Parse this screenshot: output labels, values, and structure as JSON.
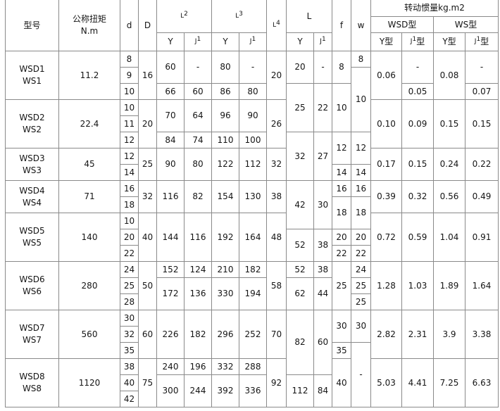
{
  "header": {
    "model": "型号",
    "torque": [
      "公称扭矩",
      "N.m"
    ],
    "d": "d",
    "D": "D",
    "L2": {
      "base": "L",
      "sup": "2"
    },
    "L3": {
      "base": "L",
      "sup": "3"
    },
    "L4": {
      "base": "L",
      "sup": "4"
    },
    "L": "L",
    "f": "f",
    "w": "w",
    "Y": "Y",
    "J1": {
      "base": "J",
      "sup": "1"
    },
    "inertia": "转动惯量kg.m2",
    "wsd": "WSD型",
    "ws": "WS型",
    "Y_type": "Y型",
    "J1_type": {
      "base": "J",
      "sup": "1",
      "suffix": "型"
    }
  },
  "body": {
    "groups": [
      {
        "model": [
          "WSD1",
          "WS1"
        ],
        "torque": "11.2",
        "d": [
          "8",
          "9",
          "10"
        ],
        "D": "16",
        "L2_Y": [
          "60",
          "66"
        ],
        "L2_J1": [
          "-",
          "60"
        ],
        "L3_Y": [
          "80",
          "86"
        ],
        "L3_J1": [
          "-",
          "80"
        ],
        "L4": "20",
        "wsd_Y": [
          "0.06"
        ],
        "wsd_J1": [
          "-",
          "0.05"
        ],
        "ws_Y": [
          "0.08"
        ],
        "ws_J1": [
          "-",
          "0.07"
        ]
      },
      {
        "model": [
          "WSD2",
          "WS2"
        ],
        "torque": "22.4",
        "d": [
          "10",
          "11",
          "12"
        ],
        "D": "20",
        "L2_Y": [
          "70",
          "84"
        ],
        "L2_J1": [
          "64",
          "74"
        ],
        "L3_Y": [
          "96",
          "110"
        ],
        "L3_J1": [
          "90",
          "100"
        ],
        "L4": "26",
        "wsd_Y": [
          "0.10"
        ],
        "wsd_J1": [
          "0.09"
        ],
        "ws_Y": [
          "0.15"
        ],
        "ws_J1": [
          "0.15"
        ]
      },
      {
        "model": [
          "WSD3",
          "WS3"
        ],
        "torque": "45",
        "d": [
          "12",
          "14"
        ],
        "D": "25",
        "L2_Y": [
          "90"
        ],
        "L2_J1": [
          "80"
        ],
        "L3_Y": [
          "122"
        ],
        "L3_J1": [
          "112"
        ],
        "L4": "32",
        "wsd_Y": [
          "0.17"
        ],
        "wsd_J1": [
          "0.15"
        ],
        "ws_Y": [
          "0.24"
        ],
        "ws_J1": [
          "0.22"
        ]
      },
      {
        "model": [
          "WSD4",
          "WS4"
        ],
        "torque": "71",
        "d": [
          "16",
          "18"
        ],
        "D": "32",
        "L2_Y": [
          "116"
        ],
        "L2_J1": [
          "82"
        ],
        "L3_Y": [
          "154"
        ],
        "L3_J1": [
          "130"
        ],
        "L4": "38",
        "wsd_Y": [
          "0.39"
        ],
        "wsd_J1": [
          "0.32"
        ],
        "ws_Y": [
          "0.56"
        ],
        "ws_J1": [
          "0.49"
        ]
      },
      {
        "model": [
          "WSD5",
          "WS5"
        ],
        "torque": "140",
        "d": [
          "10",
          "20",
          "22"
        ],
        "D": "40",
        "L2_Y": [
          "144"
        ],
        "L2_J1": [
          "116"
        ],
        "L3_Y": [
          "192"
        ],
        "L3_J1": [
          "164"
        ],
        "L4": "48",
        "wsd_Y": [
          "0.72"
        ],
        "wsd_J1": [
          "0.59"
        ],
        "ws_Y": [
          "1.04"
        ],
        "ws_J1": [
          "0.91"
        ]
      },
      {
        "model": [
          "WSD6",
          "WS6"
        ],
        "torque": "280",
        "d": [
          "24",
          "25",
          "28"
        ],
        "D": "50",
        "L2_Y": [
          "152",
          "172"
        ],
        "L2_J1": [
          "124",
          "136"
        ],
        "L3_Y": [
          "210",
          "330"
        ],
        "L3_J1": [
          "182",
          "194"
        ],
        "L4": "58",
        "wsd_Y": [
          "1.28"
        ],
        "wsd_J1": [
          "1.03"
        ],
        "ws_Y": [
          "1.89"
        ],
        "ws_J1": [
          "1.64"
        ]
      },
      {
        "model": [
          "WSD7",
          "WS7"
        ],
        "torque": "560",
        "d": [
          "30",
          "32",
          "35"
        ],
        "D": "60",
        "L2_Y": [
          "226"
        ],
        "L2_J1": [
          "182"
        ],
        "L3_Y": [
          "296"
        ],
        "L3_J1": [
          "252"
        ],
        "L4": "70",
        "wsd_Y": [
          "2.82"
        ],
        "wsd_J1": [
          "2.31"
        ],
        "ws_Y": [
          "3.9"
        ],
        "ws_J1": [
          "3.38"
        ]
      },
      {
        "model": [
          "WSD8",
          "WS8"
        ],
        "torque": "1120",
        "d": [
          "38",
          "40",
          "42"
        ],
        "D": "75",
        "L2_Y": [
          "240",
          "300"
        ],
        "L2_J1": [
          "196",
          "244"
        ],
        "L3_Y": [
          "332",
          "392"
        ],
        "L3_J1": [
          "288",
          "336"
        ],
        "L4": "92",
        "wsd_Y": [
          "5.03"
        ],
        "wsd_J1": [
          "4.41"
        ],
        "ws_Y": [
          "7.25"
        ],
        "ws_J1": [
          "6.63"
        ]
      }
    ],
    "L_Y": [
      "20",
      "25",
      "32",
      "42",
      "52",
      "52",
      "62",
      "82",
      "112"
    ],
    "L_J1": [
      "-",
      "22",
      "27",
      "30",
      "38",
      "38",
      "44",
      "60",
      "84"
    ],
    "f": [
      "8",
      "10",
      "12",
      "14",
      "16",
      "18",
      "20",
      "22",
      "25",
      "30",
      "35",
      "40"
    ],
    "w": [
      "8",
      "10",
      "12",
      "14",
      "16",
      "18",
      "20",
      "22",
      "24",
      "25",
      "25",
      "30",
      "-"
    ]
  }
}
